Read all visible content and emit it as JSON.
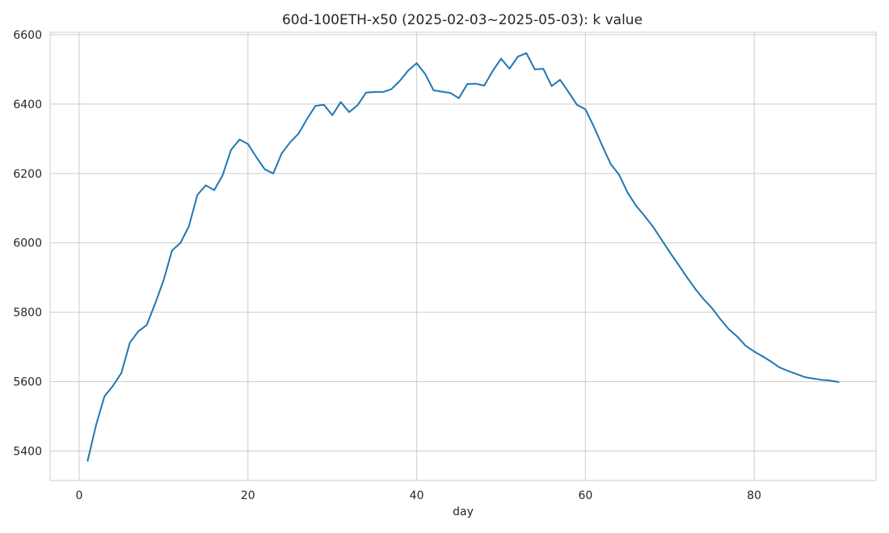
{
  "chart_data": {
    "type": "line",
    "title": "60d-100ETH-x50 (2025-02-03~2025-05-03): k value",
    "xlabel": "day",
    "ylabel": "",
    "xlim": [
      -3.45,
      94.45
    ],
    "ylim": [
      5315,
      6607
    ],
    "xticks": [
      0,
      20,
      40,
      60,
      80
    ],
    "yticks": [
      5400,
      5600,
      5800,
      6000,
      6200,
      6400,
      6600
    ],
    "grid": true,
    "series": [
      {
        "color": "#1f77b4",
        "x": [
          1,
          2,
          3,
          4,
          5,
          6,
          7,
          8,
          9,
          10,
          11,
          12,
          13,
          14,
          15,
          16,
          17,
          18,
          19,
          20,
          21,
          22,
          23,
          24,
          25,
          26,
          27,
          28,
          29,
          30,
          31,
          32,
          33,
          34,
          35,
          36,
          37,
          38,
          39,
          40,
          41,
          42,
          43,
          44,
          45,
          46,
          47,
          48,
          49,
          50,
          51,
          52,
          53,
          54,
          55,
          56,
          57,
          58,
          59,
          60,
          61,
          62,
          63,
          64,
          65,
          66,
          67,
          68,
          69,
          70,
          71,
          72,
          73,
          74,
          75,
          76,
          77,
          78,
          79,
          80,
          81,
          82,
          83,
          84,
          85,
          86,
          87,
          88,
          89,
          90
        ],
        "values": [
          5372,
          5475,
          5558,
          5588,
          5625,
          5712,
          5745,
          5763,
          5825,
          5892,
          5978,
          6000,
          6048,
          6138,
          6166,
          6152,
          6195,
          6268,
          6298,
          6285,
          6247,
          6212,
          6200,
          6258,
          6290,
          6315,
          6357,
          6395,
          6398,
          6368,
          6406,
          6377,
          6397,
          6433,
          6435,
          6435,
          6443,
          6467,
          6497,
          6518,
          6487,
          6440,
          6436,
          6432,
          6417,
          6458,
          6459,
          6453,
          6495,
          6531,
          6502,
          6537,
          6547,
          6500,
          6502,
          6452,
          6470,
          6435,
          6398,
          6385,
          6335,
          6280,
          6227,
          6196,
          6145,
          6107,
          6078,
          6047,
          6010,
          5973,
          5938,
          5902,
          5868,
          5838,
          5812,
          5780,
          5751,
          5730,
          5703,
          5687,
          5673,
          5658,
          5641,
          5631,
          5622,
          5613,
          5609,
          5605,
          5603,
          5599
        ]
      }
    ]
  }
}
